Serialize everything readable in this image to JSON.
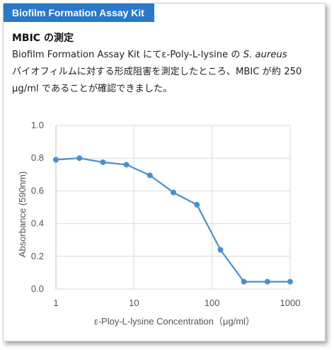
{
  "header": {
    "tab_title": "Biofilm Formation Assay Kit",
    "heading": "MBIC の測定",
    "desc_part1": "Biofilm Formation Assay Kit にてε-Poly-L-lysine の ",
    "desc_species": "S. aureus",
    "desc_part2": "バイオフィルムに対する形成阻害を測定したところ、MBIC が約 250 μg/ml であることが確認できました。"
  },
  "colors": {
    "accent": "#2a78c8",
    "series": "#4a8fd0",
    "grid": "#d9d9d9"
  },
  "chart_data": {
    "type": "line",
    "title": "",
    "xlabel": "ε-Ploy-L-lysine Concentration（μg/ml）",
    "ylabel": "Absorbance (590nm)",
    "xscale": "log",
    "xlim": [
      1,
      1000
    ],
    "ylim": [
      0,
      1.0
    ],
    "xticks": [
      1,
      10,
      100,
      1000
    ],
    "xtick_labels": [
      "1",
      "10",
      "100",
      "1000"
    ],
    "yticks": [
      0,
      0.2,
      0.4,
      0.6,
      0.8,
      1.0
    ],
    "ytick_labels": [
      "0.0",
      "0.2",
      "0.4",
      "0.6",
      "0.8",
      "1.0"
    ],
    "grid": true,
    "series": [
      {
        "x": [
          1,
          2,
          4,
          8,
          16,
          32,
          64,
          128,
          256,
          512,
          1000
        ],
        "y": [
          0.79,
          0.8,
          0.775,
          0.76,
          0.695,
          0.59,
          0.515,
          0.24,
          0.045,
          0.045,
          0.045
        ]
      }
    ]
  }
}
